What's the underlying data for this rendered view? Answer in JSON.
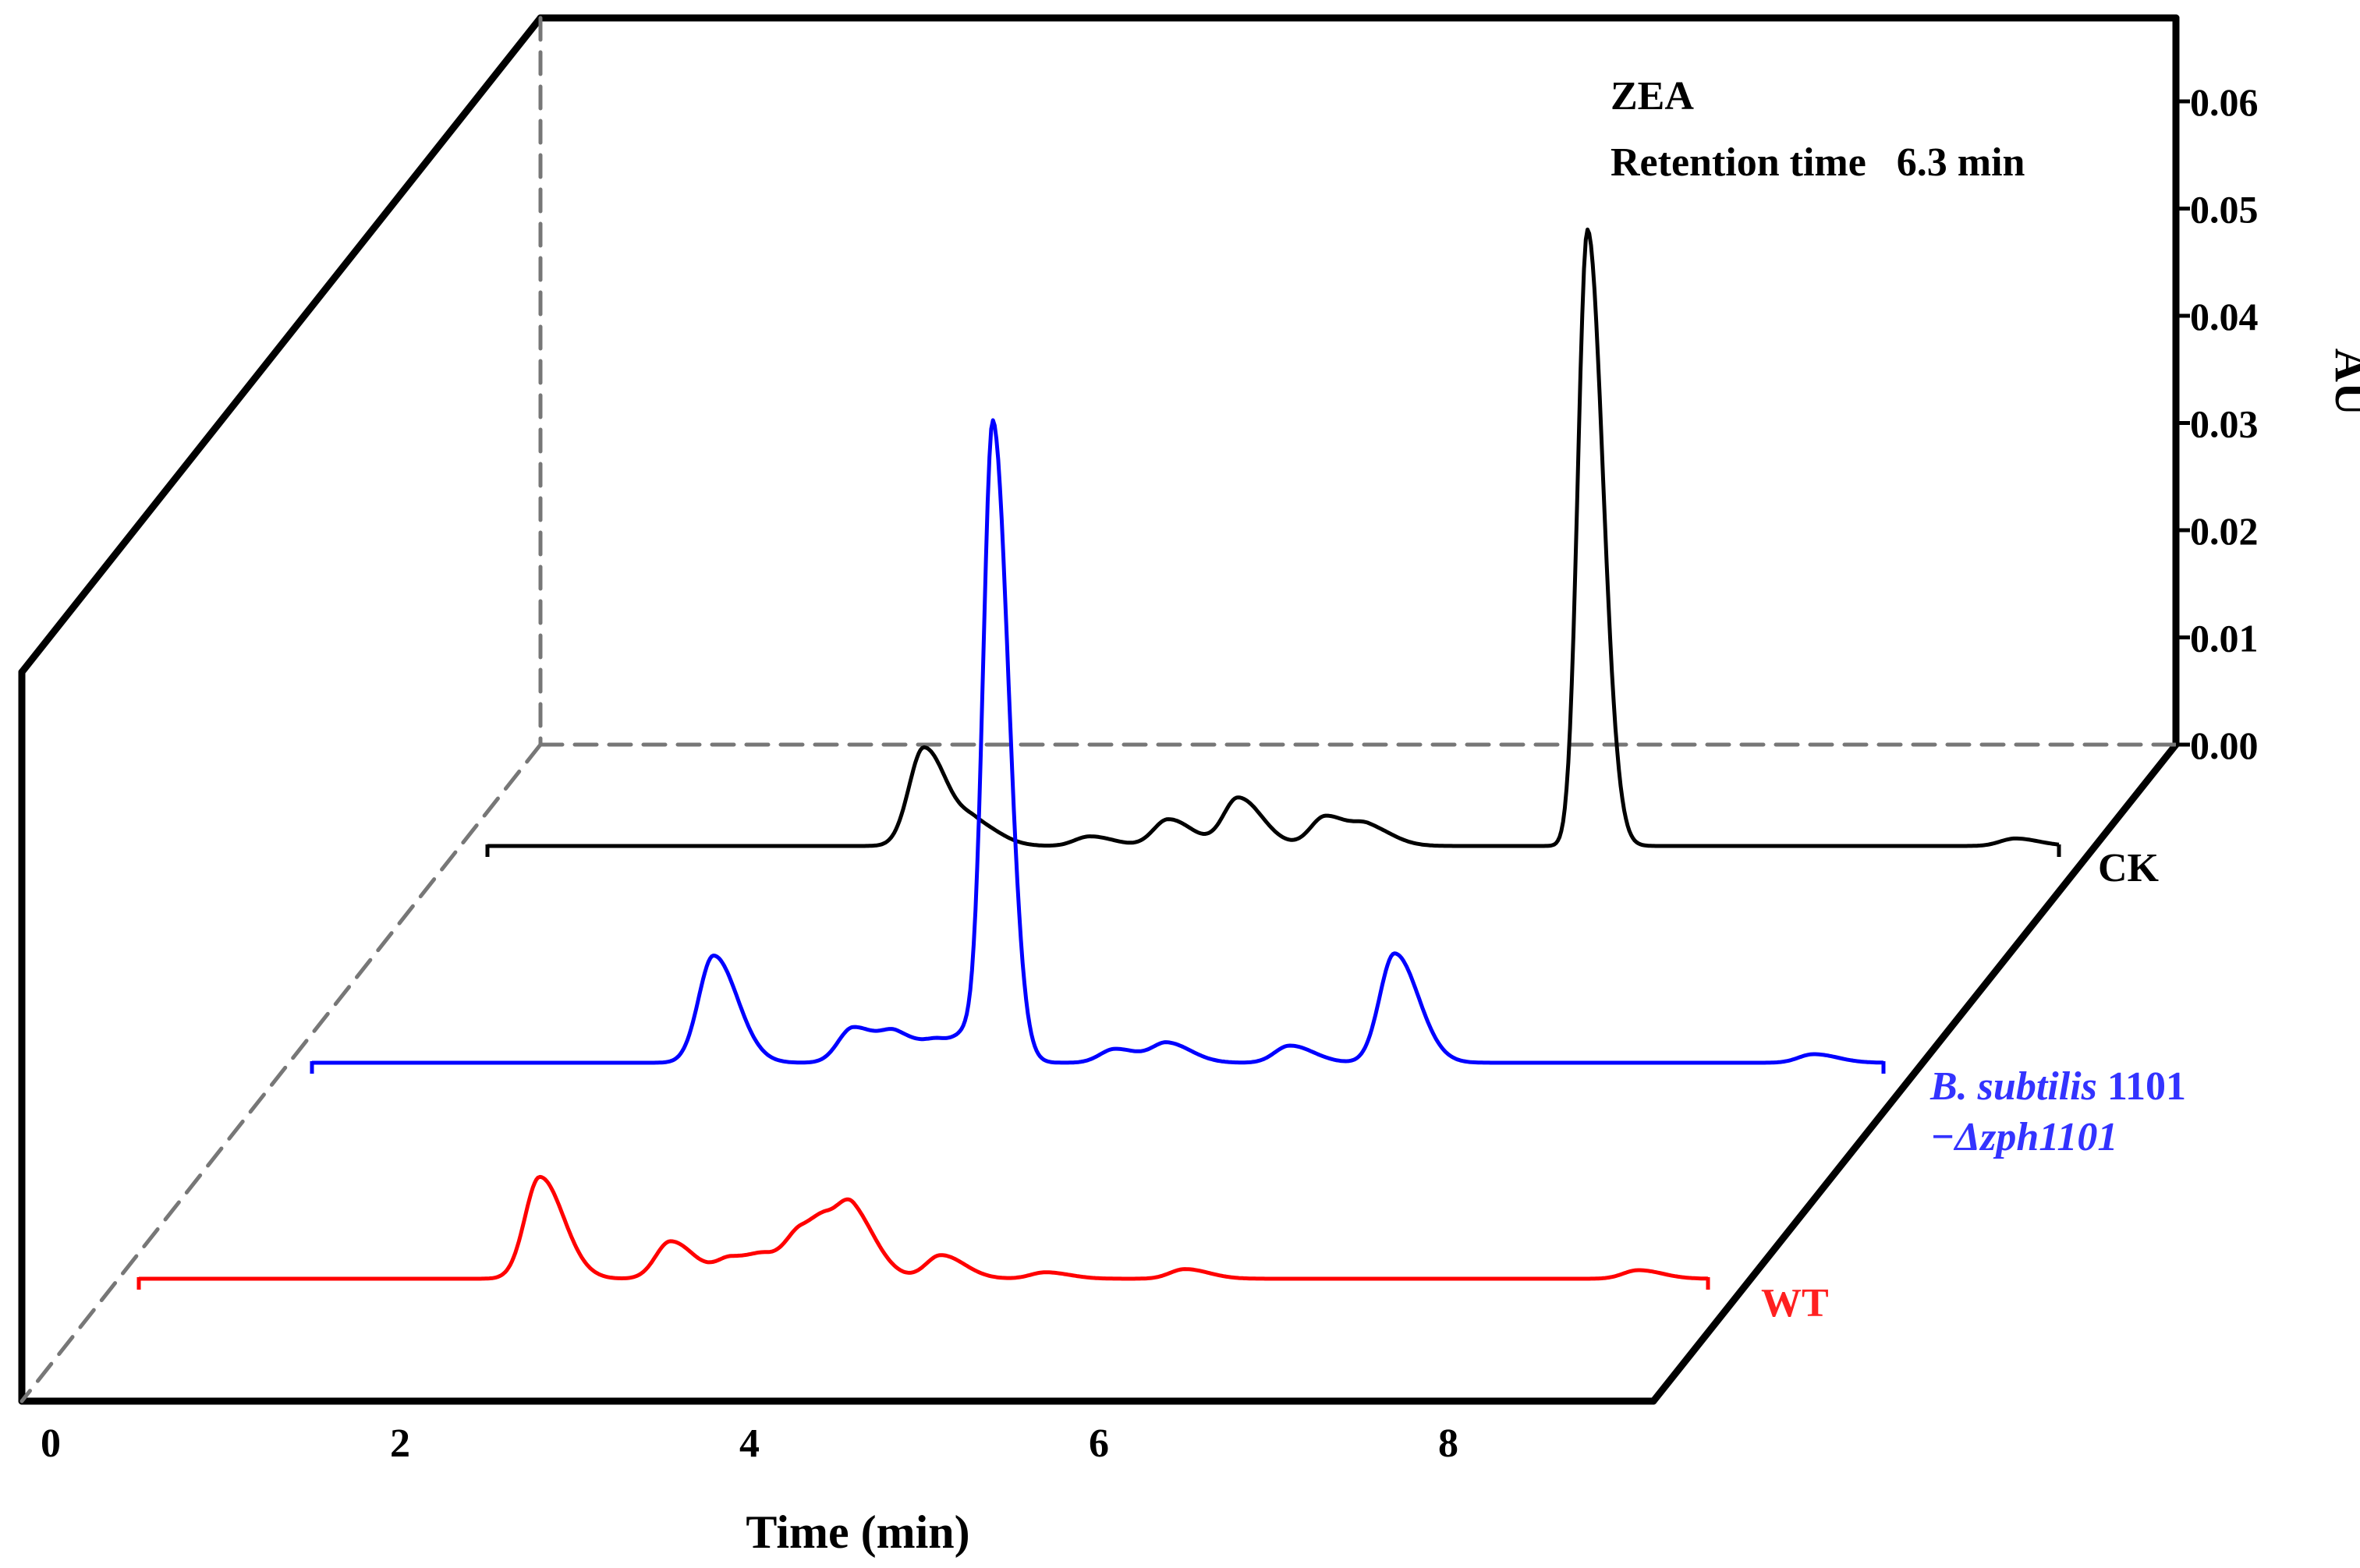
{
  "chart_data": {
    "type": "line",
    "subtype": "3d-stacked-chromatogram",
    "xlabel": "Time (min)",
    "ylabel": "AU",
    "x_ticks": [
      "0",
      "2",
      "4",
      "6",
      "8"
    ],
    "y_ticks": [
      "0.06",
      "0.05",
      "0.04",
      "0.03",
      "0.02",
      "0.01",
      "0.00"
    ],
    "y_range": [
      0.0,
      0.065
    ],
    "x_range": [
      0,
      9
    ],
    "annotation": {
      "line1": "ZEA",
      "line2": "Retention time   6.3 min"
    },
    "series": [
      {
        "name": "CK",
        "label": "CK",
        "color": "#000000",
        "depth": 2,
        "x_start": 0.0,
        "x_end": 9.0,
        "peaks": [
          {
            "x": 2.5,
            "au": 0.0092
          },
          {
            "x": 2.8,
            "au": 0.0019
          },
          {
            "x": 3.45,
            "au": 0.0009
          },
          {
            "x": 3.9,
            "au": 0.0025
          },
          {
            "x": 4.3,
            "au": 0.0045
          },
          {
            "x": 4.8,
            "au": 0.0028
          },
          {
            "x": 5.05,
            "au": 0.0016
          },
          {
            "x": 6.3,
            "au": 0.0575
          },
          {
            "x": 8.75,
            "au": 0.0007
          }
        ]
      },
      {
        "name": "B. subtilis 1101 -Δzph1101",
        "label_line1_italic": "B. subtilis",
        "label_line1_plain": " 1101",
        "label_line2": "−Δzph1101",
        "color": "#0000ff",
        "depth": 1,
        "x_start": 0.0,
        "x_end": 9.0,
        "peaks": [
          {
            "x": 2.3,
            "au": 0.01
          },
          {
            "x": 3.1,
            "au": 0.0033
          },
          {
            "x": 3.35,
            "au": 0.0024
          },
          {
            "x": 3.6,
            "au": 0.0017
          },
          {
            "x": 3.8,
            "au": 0.0026
          },
          {
            "x": 3.9,
            "au": 0.0578
          },
          {
            "x": 4.6,
            "au": 0.0013
          },
          {
            "x": 4.9,
            "au": 0.0018
          },
          {
            "x": 5.6,
            "au": 0.0016
          },
          {
            "x": 6.2,
            "au": 0.0102
          },
          {
            "x": 8.6,
            "au": 0.0008
          }
        ]
      },
      {
        "name": "WT",
        "label": "WT",
        "color": "#ff0000",
        "depth": 0,
        "x_start": 0.0,
        "x_end": 9.0,
        "peaks": [
          {
            "x": 2.3,
            "au": 0.0095
          },
          {
            "x": 3.05,
            "au": 0.0035
          },
          {
            "x": 3.4,
            "au": 0.0019
          },
          {
            "x": 3.6,
            "au": 0.0016
          },
          {
            "x": 3.8,
            "au": 0.0038
          },
          {
            "x": 3.95,
            "au": 0.0032
          },
          {
            "x": 4.1,
            "au": 0.005
          },
          {
            "x": 4.6,
            "au": 0.0022
          },
          {
            "x": 5.2,
            "au": 0.0006
          },
          {
            "x": 6.0,
            "au": 0.0009
          },
          {
            "x": 8.6,
            "au": 0.0008
          }
        ]
      }
    ]
  }
}
